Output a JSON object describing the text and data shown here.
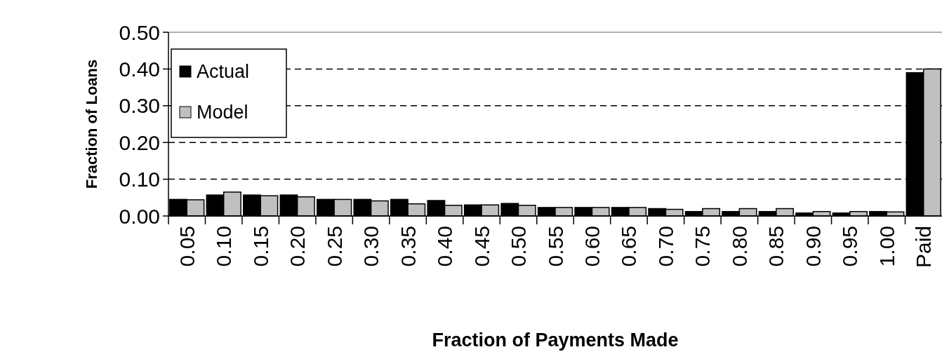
{
  "chart_data": {
    "type": "bar",
    "xlabel": "Fraction of Payments Made",
    "ylabel": "Fraction of Loans",
    "categories": [
      "0.05",
      "0.10",
      "0.15",
      "0.20",
      "0.25",
      "0.30",
      "0.35",
      "0.40",
      "0.45",
      "0.50",
      "0.55",
      "0.60",
      "0.65",
      "0.70",
      "0.75",
      "0.80",
      "0.85",
      "0.90",
      "0.95",
      "1.00",
      "Paid"
    ],
    "series": [
      {
        "name": "Actual",
        "color": "#000000",
        "values": [
          0.045,
          0.057,
          0.057,
          0.057,
          0.045,
          0.045,
          0.045,
          0.042,
          0.03,
          0.034,
          0.023,
          0.023,
          0.023,
          0.02,
          0.012,
          0.012,
          0.012,
          0.008,
          0.008,
          0.012,
          0.39
        ]
      },
      {
        "name": "Model",
        "color": "#c0c0c0",
        "values": [
          0.044,
          0.065,
          0.055,
          0.052,
          0.045,
          0.041,
          0.033,
          0.029,
          0.03,
          0.029,
          0.023,
          0.023,
          0.023,
          0.018,
          0.02,
          0.02,
          0.02,
          0.012,
          0.012,
          0.011,
          0.4
        ]
      }
    ],
    "ylim": [
      0,
      0.5
    ],
    "yticks": [
      {
        "value": 0,
        "label": "0.00"
      },
      {
        "value": 0.1,
        "label": "0.10"
      },
      {
        "value": 0.2,
        "label": "0.20"
      },
      {
        "value": 0.3,
        "label": "0.30"
      },
      {
        "value": 0.4,
        "label": "0.40"
      },
      {
        "value": 0.5,
        "label": "0.50"
      }
    ],
    "grid": "y",
    "legend": "top left"
  }
}
